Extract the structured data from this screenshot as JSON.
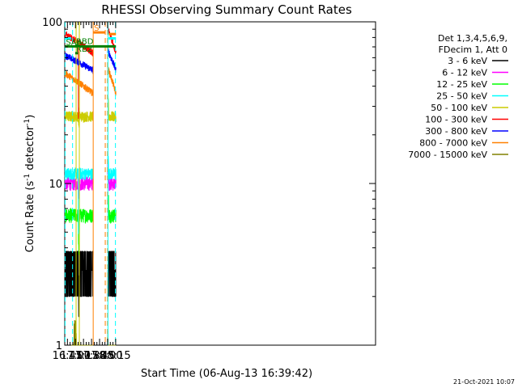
{
  "chart_data": {
    "type": "line",
    "title": "RHESSI Observing Summary Count Rates",
    "xlabel": "Start Time (06-Aug-13 16:39:42)",
    "ylabel_main": "Count Rate (s",
    "ylabel_sup1": "-1",
    "ylabel_mid": " detector",
    "ylabel_sup2": "-1",
    "ylabel_end": ")",
    "yscale": "log",
    "ylim": [
      1,
      100
    ],
    "xlim_min": [
      640,
      1220
    ],
    "y_ticks": [
      {
        "value": 1,
        "label": "1"
      },
      {
        "value": 10,
        "label": "10"
      },
      {
        "value": 100,
        "label": "100"
      }
    ],
    "x_ticks": [
      {
        "value": 645,
        "label": "16:45"
      },
      {
        "value": 660,
        "label": "17:00"
      },
      {
        "value": 675,
        "label": "17:15"
      },
      {
        "value": 690,
        "label": "17:30"
      },
      {
        "value": 705,
        "label": "17:45"
      },
      {
        "value": 720,
        "label": "18:00"
      },
      {
        "value": 735,
        "label": "18:15"
      }
    ],
    "legend_header": [
      "Det 1,3,4,5,6,9,",
      "FDecim 1, Att 0"
    ],
    "legend": [
      {
        "label": "3 - 6 keV",
        "color": "#000000"
      },
      {
        "label": "6 - 12 keV",
        "color": "#ff00ff"
      },
      {
        "label": "12 - 25 keV",
        "color": "#00ff00"
      },
      {
        "label": "25 - 50 keV",
        "color": "#00ffff"
      },
      {
        "label": "50 - 100 keV",
        "color": "#cccc00"
      },
      {
        "label": "100 - 300 keV",
        "color": "#ff0000"
      },
      {
        "label": "300 - 800 keV",
        "color": "#0000ff"
      },
      {
        "label": "800 - 7000 keV",
        "color": "#ff8000"
      },
      {
        "label": "7000 - 15000 keV",
        "color": "#808000"
      }
    ],
    "segments": [
      [
        640.5,
        693
      ],
      [
        720,
        735.5
      ]
    ],
    "series": [
      {
        "name": "3 - 6 keV",
        "color": "#000000",
        "low": 2.0,
        "high": 3.8,
        "dip_low": 1.5,
        "dip_high": 2.7,
        "noise": "binary"
      },
      {
        "name": "6 - 12 keV",
        "color": "#ff00ff",
        "low": 9.0,
        "high": 11.0,
        "dip_low": 8.0,
        "dip_high": 10.0,
        "noise": "band"
      },
      {
        "name": "12 - 25 keV",
        "color": "#00ff00",
        "low": 5.7,
        "high": 7.0,
        "dip_low": 3.2,
        "dip_high": 4.5,
        "noise": "band"
      },
      {
        "name": "25 - 50 keV",
        "color": "#00ffff",
        "low": 10.5,
        "high": 12.5,
        "dip_low": 4.5,
        "dip_high": 5.5,
        "noise": "band"
      },
      {
        "name": "50 - 100 keV",
        "color": "#cccc00",
        "low": 24.0,
        "high": 28.0,
        "dip_low": 22.0,
        "dip_high": 25.0,
        "noise": "band"
      },
      {
        "name": "100 - 300 keV",
        "color": "#ff0000",
        "start": 84,
        "end": 64,
        "dip_low": 25,
        "dip_high": 30,
        "noise": "trend"
      },
      {
        "name": "300 - 800 keV",
        "color": "#0000ff",
        "start": 62,
        "end": 50,
        "noise": "trend"
      },
      {
        "name": "800 - 7000 keV",
        "color": "#ff8000",
        "start": 48,
        "end": 36,
        "noise": "trend"
      },
      {
        "name": "7000 - 15000 keV",
        "color": "#808000",
        "low": 1.0,
        "high": 1.45,
        "noise": "spiky"
      }
    ],
    "dip_window": [
      665.5,
      667.3
    ],
    "annotations": [
      {
        "type": "flag_bar",
        "label": "S",
        "color": "#ff8000",
        "x0": 693,
        "x1": 715.5,
        "value": 86
      },
      {
        "type": "flag_bar",
        "label": "",
        "color": "#ff8000",
        "x0": 722,
        "x1": 735.5,
        "value": 84
      },
      {
        "type": "flag_bar",
        "label": "",
        "color": "#00ffff",
        "x0": 641,
        "x1": 652,
        "value": 79
      },
      {
        "type": "flag_bar",
        "label": "",
        "color": "#00ffff",
        "x0": 722,
        "x1": 735.5,
        "value": 79
      },
      {
        "type": "flag_bar",
        "label": "SAA",
        "color": "#008000",
        "x0": 640.5,
        "x1": 735.5,
        "value": 70.5
      },
      {
        "type": "flag_bar",
        "label": "RBD",
        "color": "#008000",
        "x0": 659.5,
        "x1": 668,
        "value": 71.3
      },
      {
        "type": "flag_bar",
        "label": "RB2",
        "color": "#008000",
        "x0": 659.5,
        "x1": 665,
        "value": 64
      }
    ],
    "vlines": [
      {
        "x": 640.6,
        "color": "#00ffff",
        "style": "dashed"
      },
      {
        "x": 654.6,
        "color": "#00ffff",
        "style": "dashed"
      },
      {
        "x": 661.2,
        "color": "#cccc00",
        "style": "solid"
      },
      {
        "x": 667.2,
        "color": "#cccc00",
        "style": "solid"
      },
      {
        "x": 693.1,
        "color": "#ff8000",
        "style": "solid"
      },
      {
        "x": 715.6,
        "color": "#ff8000",
        "style": "dashed"
      },
      {
        "x": 719.8,
        "color": "#ff8000",
        "style": "dashed"
      },
      {
        "x": 720.6,
        "color": "#00ffff",
        "style": "solid"
      },
      {
        "x": 734.6,
        "color": "#00ffff",
        "style": "dashed"
      }
    ],
    "timestamp": "21-Oct-2021 10:07"
  }
}
